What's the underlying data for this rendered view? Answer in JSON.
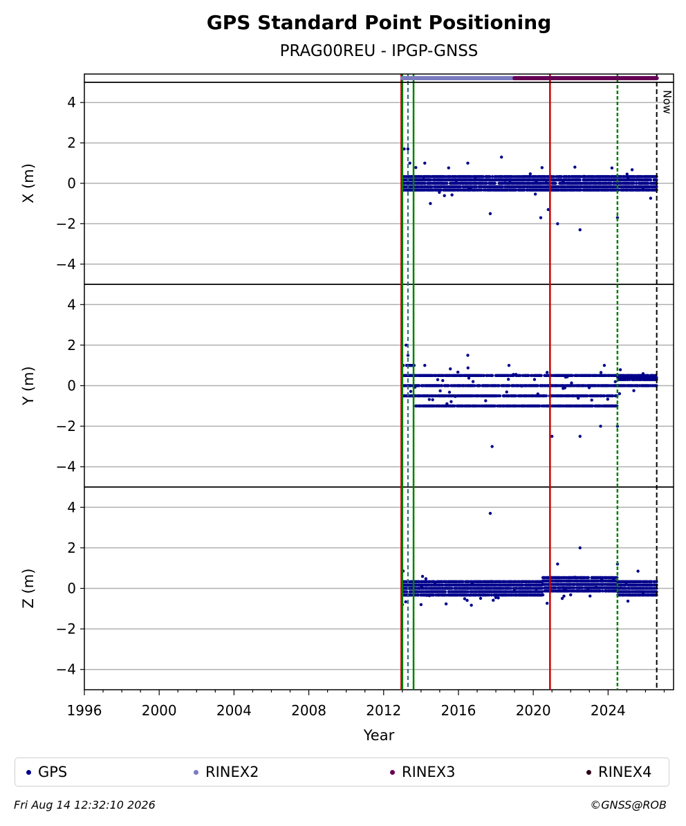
{
  "chart_data": {
    "type": "scatter",
    "title": "GPS Standard Point Positioning",
    "subtitle": "PRAG00REU - IPGP-GNSS",
    "xlabel": "Year",
    "xlim": [
      1996,
      2027.5
    ],
    "x_ticks": [
      "1996",
      "2000",
      "2004",
      "2008",
      "2012",
      "2016",
      "2020",
      "2024"
    ],
    "y_ticks": [
      "4",
      "2",
      "0",
      "−2",
      "−4"
    ],
    "panels": [
      {
        "ylabel": "X (m)",
        "ylim": [
          -5,
          5
        ],
        "outliers": [
          [
            2013.1,
            1.7
          ],
          [
            2013.3,
            1.7
          ],
          [
            2013.4,
            1.0
          ],
          [
            2014.2,
            1.0
          ],
          [
            2016.5,
            1.0
          ],
          [
            2018.3,
            1.3
          ],
          [
            2017.7,
            -1.5
          ],
          [
            2020.4,
            -1.7
          ],
          [
            2021.3,
            -2.0
          ],
          [
            2022.5,
            -2.3
          ],
          [
            2024.5,
            -1.7
          ],
          [
            2014.5,
            -1.0
          ],
          [
            2020.8,
            -1.3
          ]
        ]
      },
      {
        "ylabel": "Y (m)",
        "ylim": [
          -5,
          5
        ],
        "outliers": [
          [
            2013.2,
            2.0
          ],
          [
            2013.3,
            1.5
          ],
          [
            2016.5,
            1.5
          ],
          [
            2017.8,
            -3.0
          ],
          [
            2021.0,
            -2.5
          ],
          [
            2022.5,
            -2.5
          ],
          [
            2023.6,
            -2.0
          ],
          [
            2024.5,
            -2.0
          ],
          [
            2023.8,
            1.0
          ],
          [
            2014.2,
            1.0
          ],
          [
            2018.7,
            1.0
          ]
        ]
      },
      {
        "ylabel": "Z (m)",
        "ylim": [
          -5,
          5
        ],
        "outliers": [
          [
            2017.7,
            3.7
          ],
          [
            2022.5,
            2.0
          ],
          [
            2024.5,
            1.2
          ],
          [
            2021.3,
            1.2
          ],
          [
            2014.0,
            -0.8
          ],
          [
            2013.0,
            -0.8
          ]
        ]
      }
    ],
    "vlines_green": [
      2013.0,
      2013.6,
      2024.5
    ],
    "vlines_red": [
      2013.0,
      2020.95
    ],
    "vlines_teal_dashed": [
      2013.3
    ],
    "now_line": 2026.6,
    "now_label": "Now",
    "rinex2_range": [
      2013.0,
      2019.0
    ],
    "rinex3_range": [
      2019.0,
      2026.6
    ],
    "data_range": [
      2013.0,
      2026.6
    ],
    "grid": true,
    "legend_placement": "bottom",
    "colors": {
      "gps": "#00008b",
      "rinex2": "#7b7bbf",
      "rinex3": "#660055",
      "rinex4": "#2a0018",
      "green": "#008000",
      "red": "#cc0000"
    }
  },
  "legend": {
    "gps": "GPS",
    "rinex2": "RINEX2",
    "rinex3": "RINEX3",
    "rinex4": "RINEX4"
  },
  "footer": {
    "timestamp": "Fri Aug 14 12:32:10 2026",
    "credit": "©GNSS@ROB"
  }
}
